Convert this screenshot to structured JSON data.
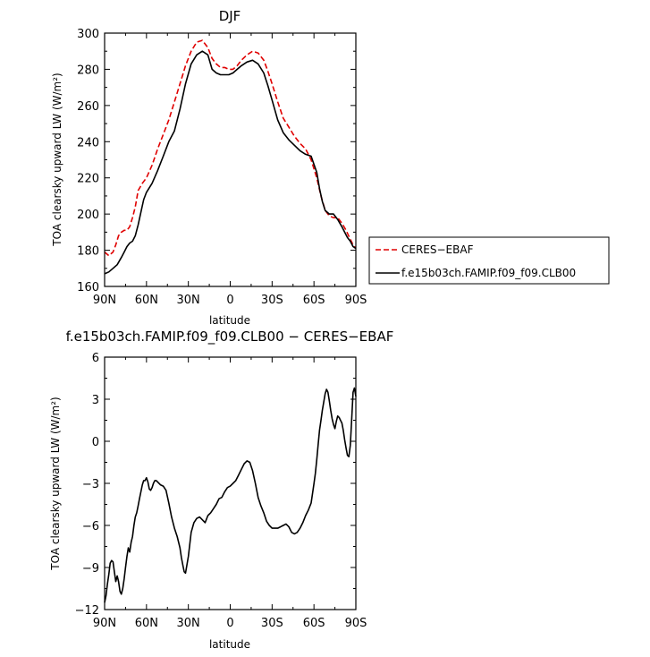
{
  "chart_data": [
    {
      "type": "line",
      "title": "DJF",
      "xlabel": "latitude",
      "ylabel": "TOA clearsky upward LW (W/m²)",
      "ylim": [
        160,
        300
      ],
      "yticks": [
        160,
        180,
        200,
        220,
        240,
        260,
        280,
        300
      ],
      "xlim": [
        90,
        -90
      ],
      "xticks": [
        {
          "value": 90,
          "label": "90N"
        },
        {
          "value": 60,
          "label": "60N"
        },
        {
          "value": 30,
          "label": "30N"
        },
        {
          "value": 0,
          "label": "0"
        },
        {
          "value": -30,
          "label": "30S"
        },
        {
          "value": -60,
          "label": "60S"
        },
        {
          "value": -90,
          "label": "90S"
        }
      ],
      "legend": {
        "placement": "right"
      },
      "series": [
        {
          "name": "CERES−EBAF",
          "color": "#e00000",
          "dash": "dashed",
          "x": [
            90,
            87,
            84,
            82,
            80,
            78,
            76,
            74,
            72,
            70,
            68,
            66,
            63,
            60,
            56,
            52,
            48,
            44,
            40,
            36,
            32,
            28,
            24,
            20,
            16,
            13,
            10,
            7,
            4,
            1,
            -2,
            -5,
            -8,
            -12,
            -16,
            -20,
            -24,
            -27,
            -30,
            -34,
            -38,
            -42,
            -46,
            -50,
            -54,
            -58,
            -62,
            -65,
            -68,
            -71,
            -74,
            -77,
            -80,
            -83,
            -86,
            -88,
            -90
          ],
          "y": [
            179,
            177,
            179,
            183,
            188,
            190,
            191,
            191,
            193,
            198,
            204,
            213,
            217,
            220,
            227,
            236,
            244,
            252,
            262,
            272,
            282,
            290,
            295,
            296,
            292,
            286,
            283,
            281,
            281,
            280,
            280,
            282,
            285,
            288,
            290,
            289,
            285,
            279,
            272,
            262,
            253,
            248,
            243,
            239,
            236,
            230,
            220,
            210,
            202,
            199,
            198,
            198,
            195,
            191,
            186,
            183,
            181
          ]
        },
        {
          "name": "f.e15b03ch.FAMIP.f09_f09.CLB00",
          "color": "#000000",
          "dash": "solid",
          "x": [
            90,
            87,
            84,
            81,
            78,
            76,
            74,
            72,
            70,
            68,
            66,
            64,
            62,
            60,
            56,
            52,
            48,
            44,
            40,
            36,
            32,
            28,
            24,
            20,
            16,
            13,
            10,
            7,
            4,
            1,
            -2,
            -5,
            -8,
            -12,
            -16,
            -20,
            -24,
            -27,
            -30,
            -34,
            -38,
            -42,
            -46,
            -50,
            -54,
            -58,
            -62,
            -64,
            -66,
            -68,
            -71,
            -74,
            -77,
            -80,
            -82,
            -84,
            -86,
            -88,
            -90
          ],
          "y": [
            167,
            168,
            170,
            172,
            176,
            179,
            182,
            184,
            185,
            188,
            194,
            201,
            208,
            212,
            217,
            224,
            232,
            240,
            246,
            258,
            272,
            283,
            288,
            290,
            288,
            280,
            278,
            277,
            277,
            277,
            278,
            280,
            282,
            284,
            285,
            283,
            278,
            271,
            263,
            252,
            245,
            241,
            238,
            235,
            233,
            232,
            223,
            214,
            207,
            202,
            200,
            200,
            197,
            193,
            190,
            187,
            185,
            182,
            181
          ]
        }
      ]
    },
    {
      "type": "line",
      "title": "f.e15b03ch.FAMIP.f09_f09.CLB00 − CERES−EBAF",
      "xlabel": "latitude",
      "ylabel": "TOA clearsky upward LW (W/m²)",
      "ylim": [
        -12,
        6
      ],
      "yticks": [
        -12,
        -9,
        -6,
        -3,
        0,
        3,
        6
      ],
      "xlim": [
        90,
        -90
      ],
      "xticks": [
        {
          "value": 90,
          "label": "90N"
        },
        {
          "value": 60,
          "label": "60N"
        },
        {
          "value": 30,
          "label": "30N"
        },
        {
          "value": 0,
          "label": "0"
        },
        {
          "value": -30,
          "label": "30S"
        },
        {
          "value": -60,
          "label": "60S"
        },
        {
          "value": -90,
          "label": "90S"
        }
      ],
      "series": [
        {
          "color": "#000000",
          "dash": "solid",
          "x": [
            90,
            89,
            88,
            87,
            86,
            85,
            84,
            83,
            82,
            81,
            80,
            79,
            78,
            77,
            76,
            75,
            74,
            73,
            72,
            71,
            70,
            69,
            68,
            67,
            66,
            65,
            64,
            63,
            62,
            61,
            60,
            59,
            58,
            57,
            56,
            55,
            54,
            53,
            52,
            50,
            48,
            46,
            44,
            42,
            40,
            38,
            36,
            35,
            34,
            33,
            32,
            30,
            28,
            26,
            24,
            22,
            20,
            18,
            16,
            14,
            12,
            10,
            8,
            6,
            4,
            2,
            0,
            -2,
            -4,
            -6,
            -8,
            -10,
            -12,
            -14,
            -16,
            -18,
            -20,
            -22,
            -24,
            -26,
            -28,
            -30,
            -32,
            -34,
            -36,
            -38,
            -40,
            -42,
            -44,
            -46,
            -48,
            -50,
            -52,
            -54,
            -56,
            -58,
            -59,
            -60,
            -61,
            -62,
            -63,
            -64,
            -65,
            -66,
            -67,
            -68,
            -69,
            -70,
            -71,
            -72,
            -73,
            -74,
            -75,
            -76,
            -77,
            -78,
            -79,
            -80,
            -81,
            -82,
            -83,
            -84,
            -85,
            -86,
            -87,
            -88,
            -89,
            -90
          ],
          "y": [
            -11.5,
            -11,
            -10.2,
            -9.5,
            -8.7,
            -8.5,
            -8.6,
            -9.3,
            -10,
            -9.6,
            -10,
            -10.7,
            -10.9,
            -10.5,
            -9.8,
            -9,
            -8.2,
            -7.6,
            -7.9,
            -7.2,
            -6.8,
            -6,
            -5.4,
            -5.1,
            -4.6,
            -4.1,
            -3.6,
            -3.1,
            -2.8,
            -2.8,
            -2.6,
            -2.9,
            -3.4,
            -3.5,
            -3.3,
            -3,
            -2.8,
            -2.8,
            -2.9,
            -3.1,
            -3.2,
            -3.5,
            -4.4,
            -5.4,
            -6.2,
            -6.8,
            -7.6,
            -8.3,
            -8.8,
            -9.3,
            -9.4,
            -8.2,
            -6.5,
            -5.8,
            -5.5,
            -5.4,
            -5.6,
            -5.8,
            -5.3,
            -5.1,
            -4.8,
            -4.5,
            -4.1,
            -4,
            -3.6,
            -3.3,
            -3.2,
            -3,
            -2.8,
            -2.4,
            -2,
            -1.6,
            -1.4,
            -1.5,
            -2.1,
            -3,
            -4,
            -4.6,
            -5.1,
            -5.7,
            -6,
            -6.2,
            -6.2,
            -6.2,
            -6.1,
            -6,
            -5.9,
            -6.1,
            -6.5,
            -6.6,
            -6.5,
            -6.2,
            -5.8,
            -5.3,
            -4.9,
            -4.4,
            -3.7,
            -3,
            -2.3,
            -1.3,
            -0.2,
            0.8,
            1.5,
            2.2,
            2.8,
            3.4,
            3.7,
            3.5,
            2.9,
            2.2,
            1.6,
            1.2,
            0.9,
            1.4,
            1.8,
            1.7,
            1.5,
            1.3,
            0.8,
            0.1,
            -0.5,
            -1.0,
            -1.1,
            -0.3,
            1.5,
            3.5,
            3.8,
            3.2
          ]
        }
      ]
    }
  ]
}
